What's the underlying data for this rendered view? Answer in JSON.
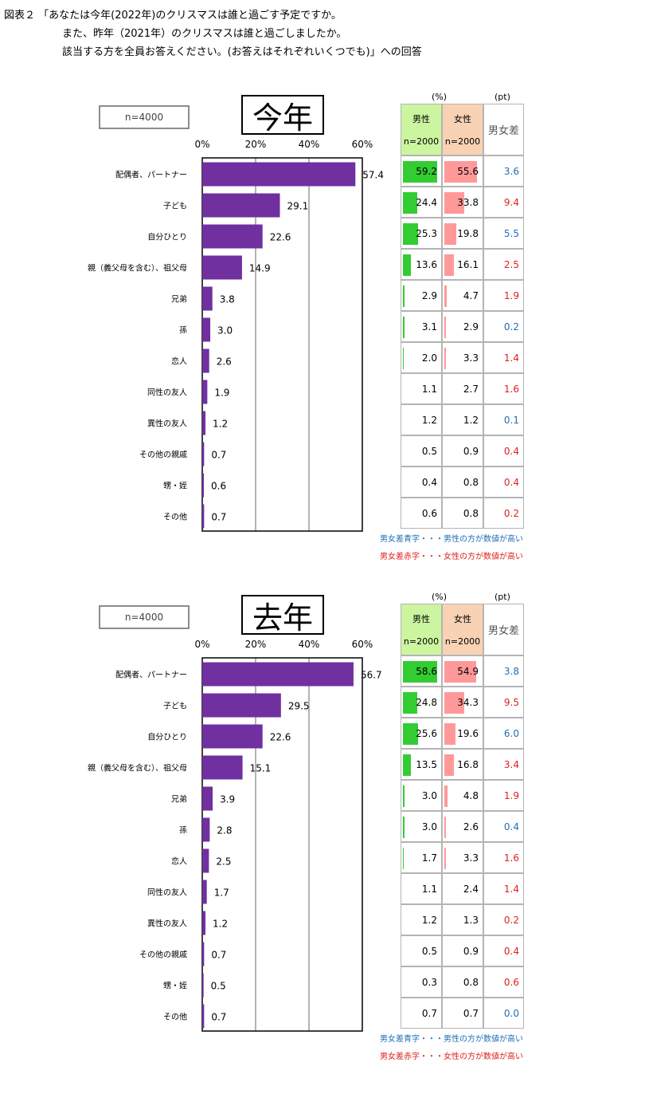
{
  "title": {
    "line1": "図表２ 「あなたは今年(2022年)のクリスマスは誰と過ごす予定ですか。",
    "line2": "また、昨年（2021年）のクリスマスは誰と過ごしましたか。",
    "line3": "該当する方を全員お答えください。(お答えはそれぞれいくつでも)」への回答"
  },
  "colors": {
    "bar": "#7030a0",
    "male_bar": "#33cc33",
    "female_bar": "#ff9999",
    "diff_blue": "#1f6fb5",
    "diff_red": "#e0201c"
  },
  "panels": [
    {
      "n_label": "n=4000",
      "year_label": "今年",
      "unit_pct": "(%)",
      "unit_pt": "(pt)",
      "table_header": {
        "male": "男性",
        "female": "女性",
        "male_n": "n=2000",
        "female_n": "n=2000",
        "diff": "男女差"
      },
      "table_rows": [
        {
          "male": "59.2",
          "female": "55.6",
          "diff": "3.6",
          "diff_color": "blue"
        },
        {
          "male": "24.4",
          "female": "33.8",
          "diff": "9.4",
          "diff_color": "red"
        },
        {
          "male": "25.3",
          "female": "19.8",
          "diff": "5.5",
          "diff_color": "blue"
        },
        {
          "male": "13.6",
          "female": "16.1",
          "diff": "2.5",
          "diff_color": "red"
        },
        {
          "male": "2.9",
          "female": "4.7",
          "diff": "1.9",
          "diff_color": "red"
        },
        {
          "male": "3.1",
          "female": "2.9",
          "diff": "0.2",
          "diff_color": "blue"
        },
        {
          "male": "2.0",
          "female": "3.3",
          "diff": "1.4",
          "diff_color": "red"
        },
        {
          "male": "1.1",
          "female": "2.7",
          "diff": "1.6",
          "diff_color": "red"
        },
        {
          "male": "1.2",
          "female": "1.2",
          "diff": "0.1",
          "diff_color": "blue"
        },
        {
          "male": "0.5",
          "female": "0.9",
          "diff": "0.4",
          "diff_color": "red"
        },
        {
          "male": "0.4",
          "female": "0.8",
          "diff": "0.4",
          "diff_color": "red"
        },
        {
          "male": "0.6",
          "female": "0.8",
          "diff": "0.2",
          "diff_color": "red"
        }
      ],
      "note_blue": "男女差青字・・・男性の方が数値が高い",
      "note_red": "男女差赤字・・・女性の方が数値が高い"
    },
    {
      "n_label": "n=4000",
      "year_label": "去年",
      "unit_pct": "(%)",
      "unit_pt": "(pt)",
      "table_header": {
        "male": "男性",
        "female": "女性",
        "male_n": "n=2000",
        "female_n": "n=2000",
        "diff": "男女差"
      },
      "table_rows": [
        {
          "male": "58.6",
          "female": "54.9",
          "diff": "3.8",
          "diff_color": "blue"
        },
        {
          "male": "24.8",
          "female": "34.3",
          "diff": "9.5",
          "diff_color": "red"
        },
        {
          "male": "25.6",
          "female": "19.6",
          "diff": "6.0",
          "diff_color": "blue"
        },
        {
          "male": "13.5",
          "female": "16.8",
          "diff": "3.4",
          "diff_color": "red"
        },
        {
          "male": "3.0",
          "female": "4.8",
          "diff": "1.9",
          "diff_color": "red"
        },
        {
          "male": "3.0",
          "female": "2.6",
          "diff": "0.4",
          "diff_color": "blue"
        },
        {
          "male": "1.7",
          "female": "3.3",
          "diff": "1.6",
          "diff_color": "red"
        },
        {
          "male": "1.1",
          "female": "2.4",
          "diff": "1.4",
          "diff_color": "red"
        },
        {
          "male": "1.2",
          "female": "1.3",
          "diff": "0.2",
          "diff_color": "red"
        },
        {
          "male": "0.5",
          "female": "0.9",
          "diff": "0.4",
          "diff_color": "red"
        },
        {
          "male": "0.3",
          "female": "0.8",
          "diff": "0.6",
          "diff_color": "red"
        },
        {
          "male": "0.7",
          "female": "0.7",
          "diff": "0.0",
          "diff_color": "blue"
        }
      ],
      "note_blue": "男女差青字・・・男性の方が数値が高い",
      "note_red": "男女差赤字・・・女性の方が数値が高い"
    }
  ],
  "chart_data": [
    {
      "type": "bar",
      "orientation": "horizontal",
      "title": "今年",
      "categories": [
        "配偶者、パートナー",
        "子ども",
        "自分ひとり",
        "親（義父母を含む）、祖父母",
        "兄弟",
        "孫",
        "恋人",
        "同性の友人",
        "異性の友人",
        "その他の親戚",
        "甥・姪",
        "その他"
      ],
      "values": [
        57.4,
        29.1,
        22.6,
        14.9,
        3.8,
        3.0,
        2.6,
        1.9,
        1.2,
        0.7,
        0.6,
        0.7
      ],
      "value_labels": [
        "57.4",
        "29.1",
        "22.6",
        "14.9",
        "3.8",
        "3.0",
        "2.6",
        "1.9",
        "1.2",
        "0.7",
        "0.6",
        "0.7"
      ],
      "xlim": [
        0,
        60
      ],
      "ticks": [
        0,
        20,
        40,
        60
      ],
      "tick_labels": [
        "0%",
        "20%",
        "40%",
        "60%"
      ],
      "grid": true,
      "xlabel": "",
      "ylabel": ""
    },
    {
      "type": "bar",
      "orientation": "horizontal",
      "title": "去年",
      "categories": [
        "配偶者、パートナー",
        "子ども",
        "自分ひとり",
        "親（義父母を含む）、祖父母",
        "兄弟",
        "孫",
        "恋人",
        "同性の友人",
        "異性の友人",
        "その他の親戚",
        "甥・姪",
        "その他"
      ],
      "values": [
        56.7,
        29.5,
        22.6,
        15.1,
        3.9,
        2.8,
        2.5,
        1.7,
        1.2,
        0.7,
        0.5,
        0.7
      ],
      "value_labels": [
        "56.7",
        "29.5",
        "22.6",
        "15.1",
        "3.9",
        "2.8",
        "2.5",
        "1.7",
        "1.2",
        "0.7",
        "0.5",
        "0.7"
      ],
      "xlim": [
        0,
        60
      ],
      "ticks": [
        0,
        20,
        40,
        60
      ],
      "tick_labels": [
        "0%",
        "20%",
        "40%",
        "60%"
      ],
      "grid": true,
      "xlabel": "",
      "ylabel": ""
    }
  ]
}
